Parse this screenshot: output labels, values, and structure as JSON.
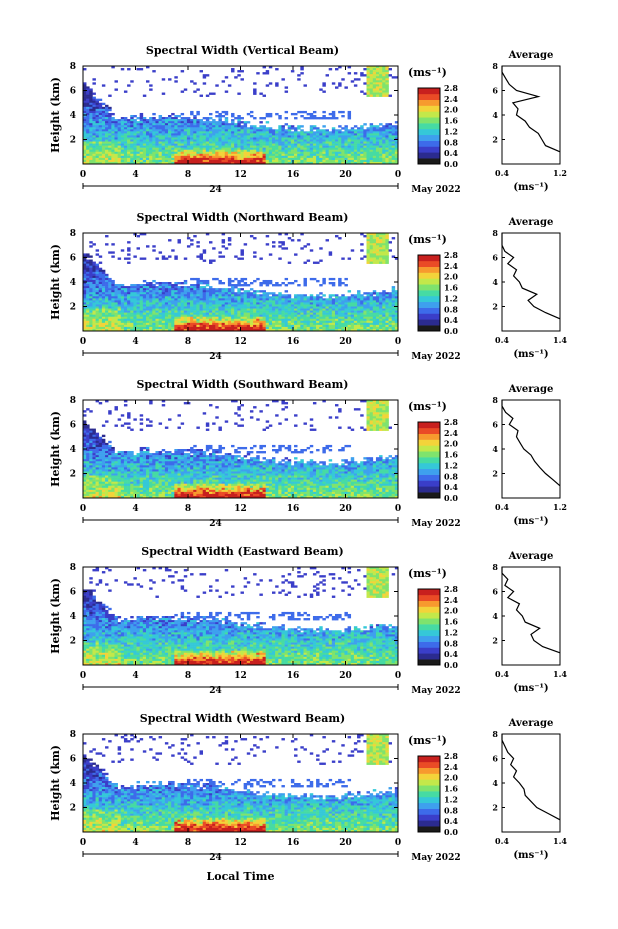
{
  "figure": {
    "xlabel": "Local Time",
    "date_label": "May 2022",
    "units_label": "(ms⁻¹)",
    "profile_xlabel": "(ms⁻¹)",
    "profile_title": "Average",
    "ylabel": "Height (km)"
  },
  "colorbar": {
    "ticks": [
      "0.0",
      "0.4",
      "0.8",
      "1.2",
      "1.6",
      "2.0",
      "2.4",
      "2.8"
    ],
    "colors": [
      "#1a1a1a",
      "#2b2b8f",
      "#3a3ec9",
      "#3d6bea",
      "#3ea0ee",
      "#35c8d8",
      "#46dba3",
      "#7fe36d",
      "#c3e84a",
      "#f3d33a",
      "#f79a2e",
      "#ea4b26",
      "#c8201e"
    ]
  },
  "chart_data": [
    {
      "type": "heatmap",
      "title": "Spectral Width (Vertical Beam)",
      "x": {
        "label": "Local Time",
        "range": [
          0,
          24
        ],
        "ticks": [
          "0",
          "4",
          "8",
          "12",
          "16",
          "20",
          "0"
        ],
        "secondary_label": "24"
      },
      "y": {
        "label": "Height (km)",
        "range": [
          0,
          8
        ],
        "ticks": [
          "2",
          "4",
          "6",
          "8"
        ]
      },
      "z": {
        "label": "Spectral width (ms⁻¹)",
        "range": [
          0,
          2.8
        ]
      },
      "profile": {
        "title": "Average",
        "xlim": [
          0.4,
          1.2
        ],
        "xticks": [
          "0.4",
          "1.2"
        ],
        "yticks": [
          "2",
          "4",
          "6",
          "8"
        ],
        "height": [
          1,
          1.5,
          2,
          2.5,
          3,
          3.5,
          4,
          4.5,
          5,
          5.5,
          6,
          6.5,
          7,
          7.5,
          8
        ],
        "value": [
          1.2,
          1.0,
          0.95,
          0.9,
          0.78,
          0.72,
          0.6,
          0.62,
          0.55,
          0.9,
          0.6,
          0.5,
          0.45,
          0.4,
          0.4
        ]
      },
      "seed": 1
    },
    {
      "type": "heatmap",
      "title": "Spectral Width (Northward Beam)",
      "x": {
        "label": "Local Time",
        "range": [
          0,
          24
        ],
        "ticks": [
          "0",
          "4",
          "8",
          "12",
          "16",
          "20",
          "0"
        ],
        "secondary_label": "24"
      },
      "y": {
        "label": "Height (km)",
        "range": [
          0,
          8
        ],
        "ticks": [
          "2",
          "4",
          "6",
          "8"
        ]
      },
      "z": {
        "label": "Spectral width (ms⁻¹)",
        "range": [
          0,
          2.8
        ]
      },
      "profile": {
        "title": "Average",
        "xlim": [
          0.4,
          1.4
        ],
        "xticks": [
          "0.4",
          "1.4"
        ],
        "yticks": [
          "2",
          "4",
          "6",
          "8"
        ],
        "height": [
          1,
          1.5,
          2,
          2.5,
          3,
          3.5,
          4,
          4.5,
          5,
          5.5,
          6,
          6.5,
          7,
          7.5,
          8
        ],
        "value": [
          1.4,
          1.15,
          0.95,
          0.85,
          1.0,
          0.75,
          0.7,
          0.6,
          0.65,
          0.5,
          0.6,
          0.45,
          0.4,
          0.4,
          0.4
        ]
      },
      "seed": 2
    },
    {
      "type": "heatmap",
      "title": "Spectral Width (Southward Beam)",
      "x": {
        "label": "Local Time",
        "range": [
          0,
          24
        ],
        "ticks": [
          "0",
          "4",
          "8",
          "12",
          "16",
          "20",
          "0"
        ],
        "secondary_label": "24"
      },
      "y": {
        "label": "Height (km)",
        "range": [
          0,
          8
        ],
        "ticks": [
          "2",
          "4",
          "6",
          "8"
        ]
      },
      "z": {
        "label": "Spectral width (ms⁻¹)",
        "range": [
          0,
          2.8
        ]
      },
      "profile": {
        "title": "Average",
        "xlim": [
          0.4,
          1.2
        ],
        "xticks": [
          "0.4",
          "1.2"
        ],
        "yticks": [
          "2",
          "4",
          "6",
          "8"
        ],
        "height": [
          1,
          1.5,
          2,
          2.5,
          3,
          3.5,
          4,
          4.5,
          5,
          5.5,
          6,
          6.5,
          7,
          7.5,
          8
        ],
        "value": [
          1.2,
          1.1,
          1.0,
          0.92,
          0.85,
          0.8,
          0.7,
          0.65,
          0.6,
          0.62,
          0.5,
          0.55,
          0.45,
          0.4,
          0.4
        ]
      },
      "seed": 3
    },
    {
      "type": "heatmap",
      "title": "Spectral Width (Eastward Beam)",
      "x": {
        "label": "Local Time",
        "range": [
          0,
          24
        ],
        "ticks": [
          "0",
          "4",
          "8",
          "12",
          "16",
          "20",
          "0"
        ],
        "secondary_label": "24"
      },
      "y": {
        "label": "Height (km)",
        "range": [
          0,
          8
        ],
        "ticks": [
          "2",
          "4",
          "6",
          "8"
        ]
      },
      "z": {
        "label": "Spectral width (ms⁻¹)",
        "range": [
          0,
          2.8
        ]
      },
      "profile": {
        "title": "Average",
        "xlim": [
          0.4,
          1.4
        ],
        "xticks": [
          "0.4",
          "1.4"
        ],
        "yticks": [
          "2",
          "4",
          "6",
          "8"
        ],
        "height": [
          1,
          1.5,
          2,
          2.5,
          3,
          3.5,
          4,
          4.5,
          5,
          5.5,
          6,
          6.5,
          7,
          7.5,
          8
        ],
        "value": [
          1.4,
          1.1,
          0.95,
          0.9,
          1.05,
          0.8,
          0.75,
          0.65,
          0.7,
          0.5,
          0.6,
          0.45,
          0.5,
          0.4,
          0.4
        ]
      },
      "seed": 4
    },
    {
      "type": "heatmap",
      "title": "Spectral Width (Westward Beam)",
      "x": {
        "label": "Local Time",
        "range": [
          0,
          24
        ],
        "ticks": [
          "0",
          "4",
          "8",
          "12",
          "16",
          "20",
          "0"
        ],
        "secondary_label": "24"
      },
      "y": {
        "label": "Height (km)",
        "range": [
          0,
          8
        ],
        "ticks": [
          "2",
          "4",
          "6",
          "8"
        ]
      },
      "z": {
        "label": "Spectral width (ms⁻¹)",
        "range": [
          0,
          2.8
        ]
      },
      "profile": {
        "title": "Average",
        "xlim": [
          0.4,
          1.4
        ],
        "xticks": [
          "0.4",
          "1.4"
        ],
        "yticks": [
          "2",
          "4",
          "6",
          "8"
        ],
        "height": [
          1,
          1.5,
          2,
          2.5,
          3,
          3.5,
          4,
          4.5,
          5,
          5.5,
          6,
          6.5,
          7,
          7.5,
          8
        ],
        "value": [
          1.4,
          1.2,
          1.0,
          0.9,
          0.8,
          0.78,
          0.7,
          0.6,
          0.65,
          0.55,
          0.6,
          0.5,
          0.45,
          0.4,
          0.4
        ]
      },
      "seed": 5
    }
  ]
}
